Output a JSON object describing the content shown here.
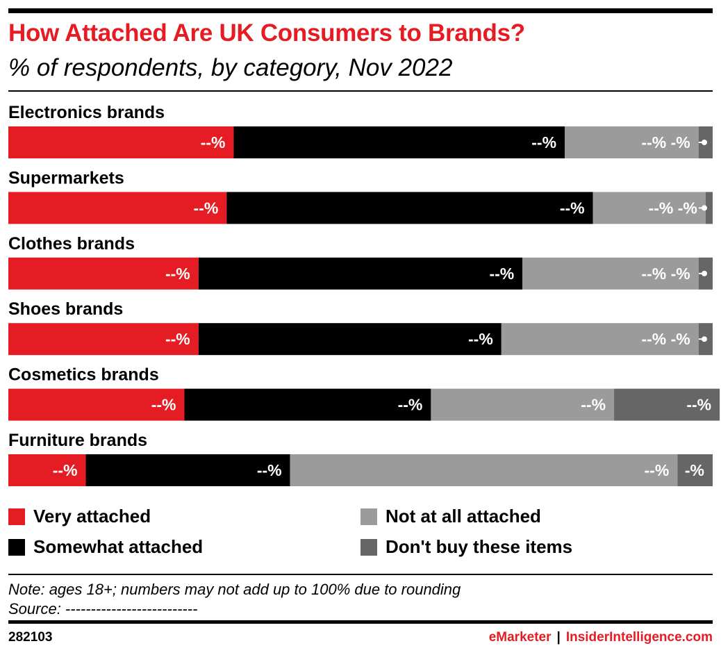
{
  "header": {
    "title": "How Attached Are UK Consumers to Brands?",
    "subtitle": "% of respondents, by category, Nov 2022"
  },
  "colors": {
    "very_attached": "#e51c23",
    "somewhat_attached": "#000000",
    "not_at_all_attached": "#9b9b9b",
    "dont_buy": "#666666"
  },
  "chart_data": {
    "type": "bar",
    "orientation": "horizontal",
    "stacked": true,
    "categories": [
      "Electronics brands",
      "Supermarkets",
      "Clothes brands",
      "Shoes brands",
      "Cosmetics brands",
      "Furniture brands"
    ],
    "series": [
      {
        "name": "Very attached",
        "values": [
          32,
          31,
          27,
          27,
          25,
          11
        ],
        "labels": [
          "--%",
          "--%",
          "--%",
          "--%",
          "--%",
          "--%"
        ]
      },
      {
        "name": "Somewhat attached",
        "values": [
          47,
          52,
          46,
          43,
          35,
          29
        ],
        "labels": [
          "--%",
          "--%",
          "--%",
          "--%",
          "--%",
          "--%"
        ]
      },
      {
        "name": "Not at all attached",
        "values": [
          19,
          16,
          25,
          28,
          26,
          55
        ],
        "labels": [
          "--% -%",
          "--% -%",
          "--% -%",
          "--% -%",
          "--%",
          "--%"
        ]
      },
      {
        "name": "Don't buy these items",
        "values": [
          2,
          1,
          2,
          2,
          15,
          5
        ],
        "labels": [
          "",
          "",
          "",
          "",
          "--%",
          "-%"
        ]
      }
    ],
    "xlim": [
      0,
      100
    ],
    "legend": "bottom"
  },
  "legend": [
    {
      "label": "Very attached"
    },
    {
      "label": "Somewhat attached"
    },
    {
      "label": "Not at all attached"
    },
    {
      "label": "Don't buy these items"
    }
  ],
  "footer": {
    "note": "Note: ages 18+; numbers may not add up to 100% due to rounding",
    "source": "Source: --------------------------",
    "chart_id": "282103",
    "brand_left": "eMarketer",
    "brand_sep": "|",
    "brand_right": "InsiderIntelligence.com"
  }
}
